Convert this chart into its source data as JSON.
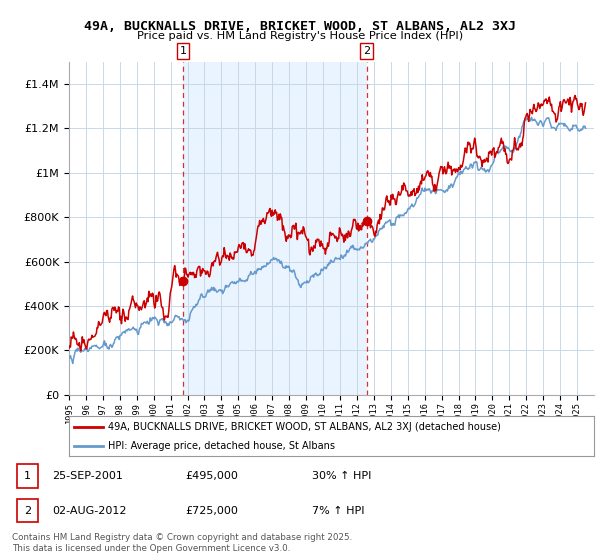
{
  "title": "49A, BUCKNALLS DRIVE, BRICKET WOOD, ST ALBANS, AL2 3XJ",
  "subtitle": "Price paid vs. HM Land Registry's House Price Index (HPI)",
  "red_color": "#cc0000",
  "blue_color": "#6699cc",
  "background_color": "#ffffff",
  "grid_color": "#c8d8e8",
  "annotation_vline_color": "#cc0000",
  "annotation_bg_color": "#ddeeff",
  "annotation1": {
    "label": "1",
    "date_str": "25-SEP-2001",
    "price": "£495,000",
    "hpi_str": "30% ↑ HPI",
    "year": 2001.73
  },
  "annotation2": {
    "label": "2",
    "date_str": "02-AUG-2012",
    "price": "£725,000",
    "hpi_str": "7% ↑ HPI",
    "year": 2012.58
  },
  "legend_line1": "49A, BUCKNALLS DRIVE, BRICKET WOOD, ST ALBANS, AL2 3XJ (detached house)",
  "legend_line2": "HPI: Average price, detached house, St Albans",
  "footer": "Contains HM Land Registry data © Crown copyright and database right 2025.\nThis data is licensed under the Open Government Licence v3.0.",
  "ylim": [
    0,
    1500000
  ],
  "xlim": [
    1995,
    2026
  ]
}
